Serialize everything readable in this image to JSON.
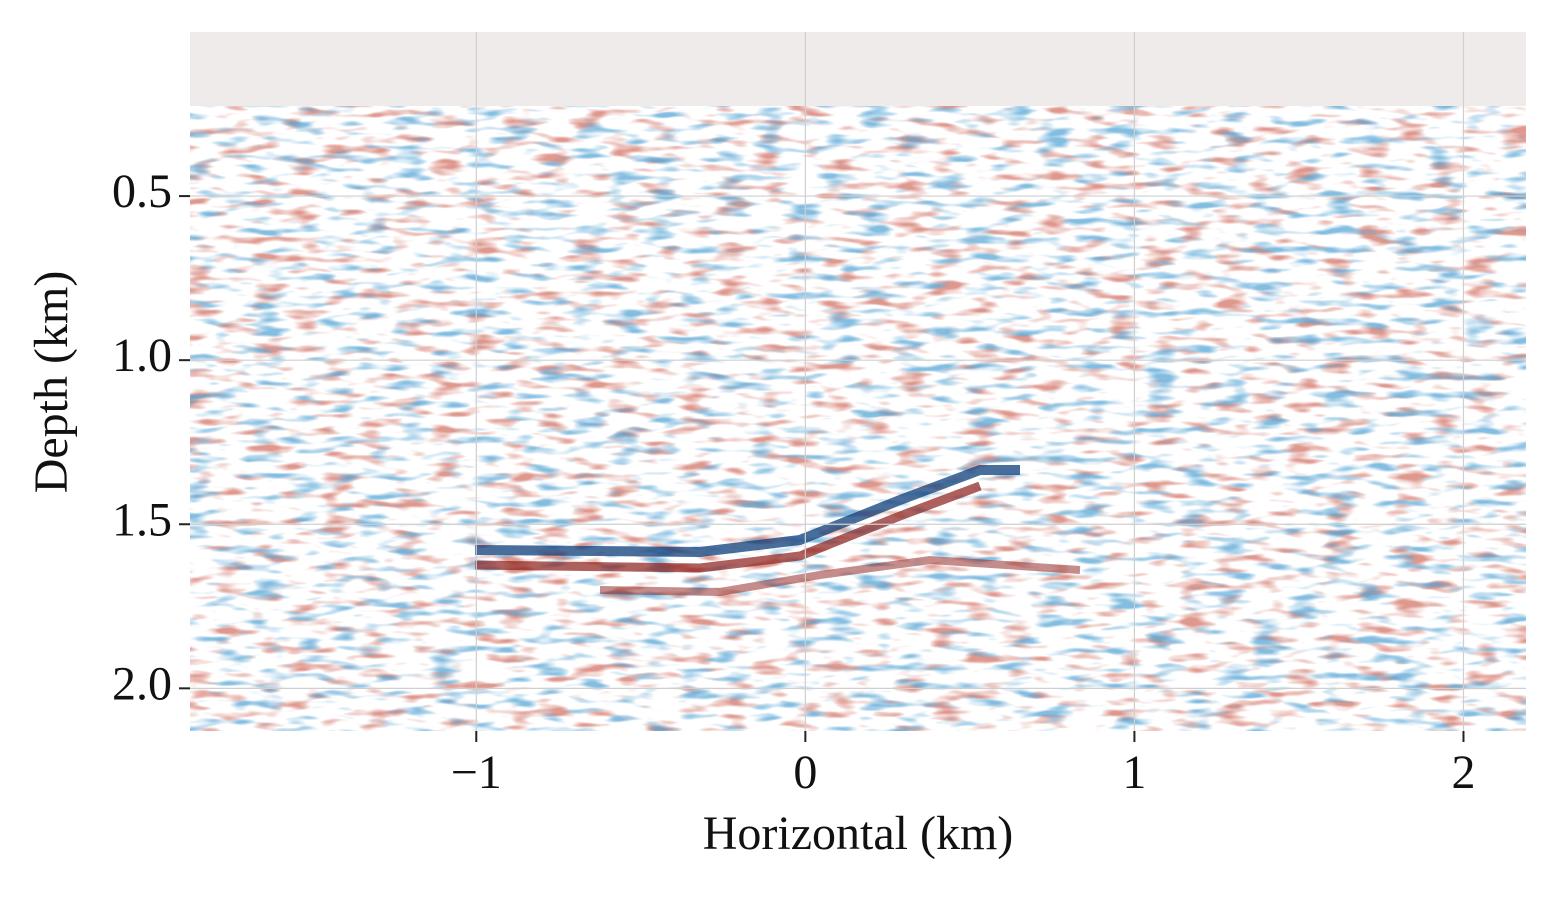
{
  "chart_data": {
    "type": "image",
    "xlabel": "Horizontal (km)",
    "ylabel": "Depth (km)",
    "xlim": [
      -1.87,
      2.19
    ],
    "ylim": [
      0.0,
      2.13
    ],
    "y_inverted": true,
    "xticks": [
      {
        "value": -1,
        "label": "−1"
      },
      0,
      1,
      2
    ],
    "yticks": [
      0.5,
      {
        "value": 1.0,
        "label": "1.0"
      },
      1.5,
      {
        "value": 2.0,
        "label": "2.0"
      }
    ],
    "grid": true
  }
}
